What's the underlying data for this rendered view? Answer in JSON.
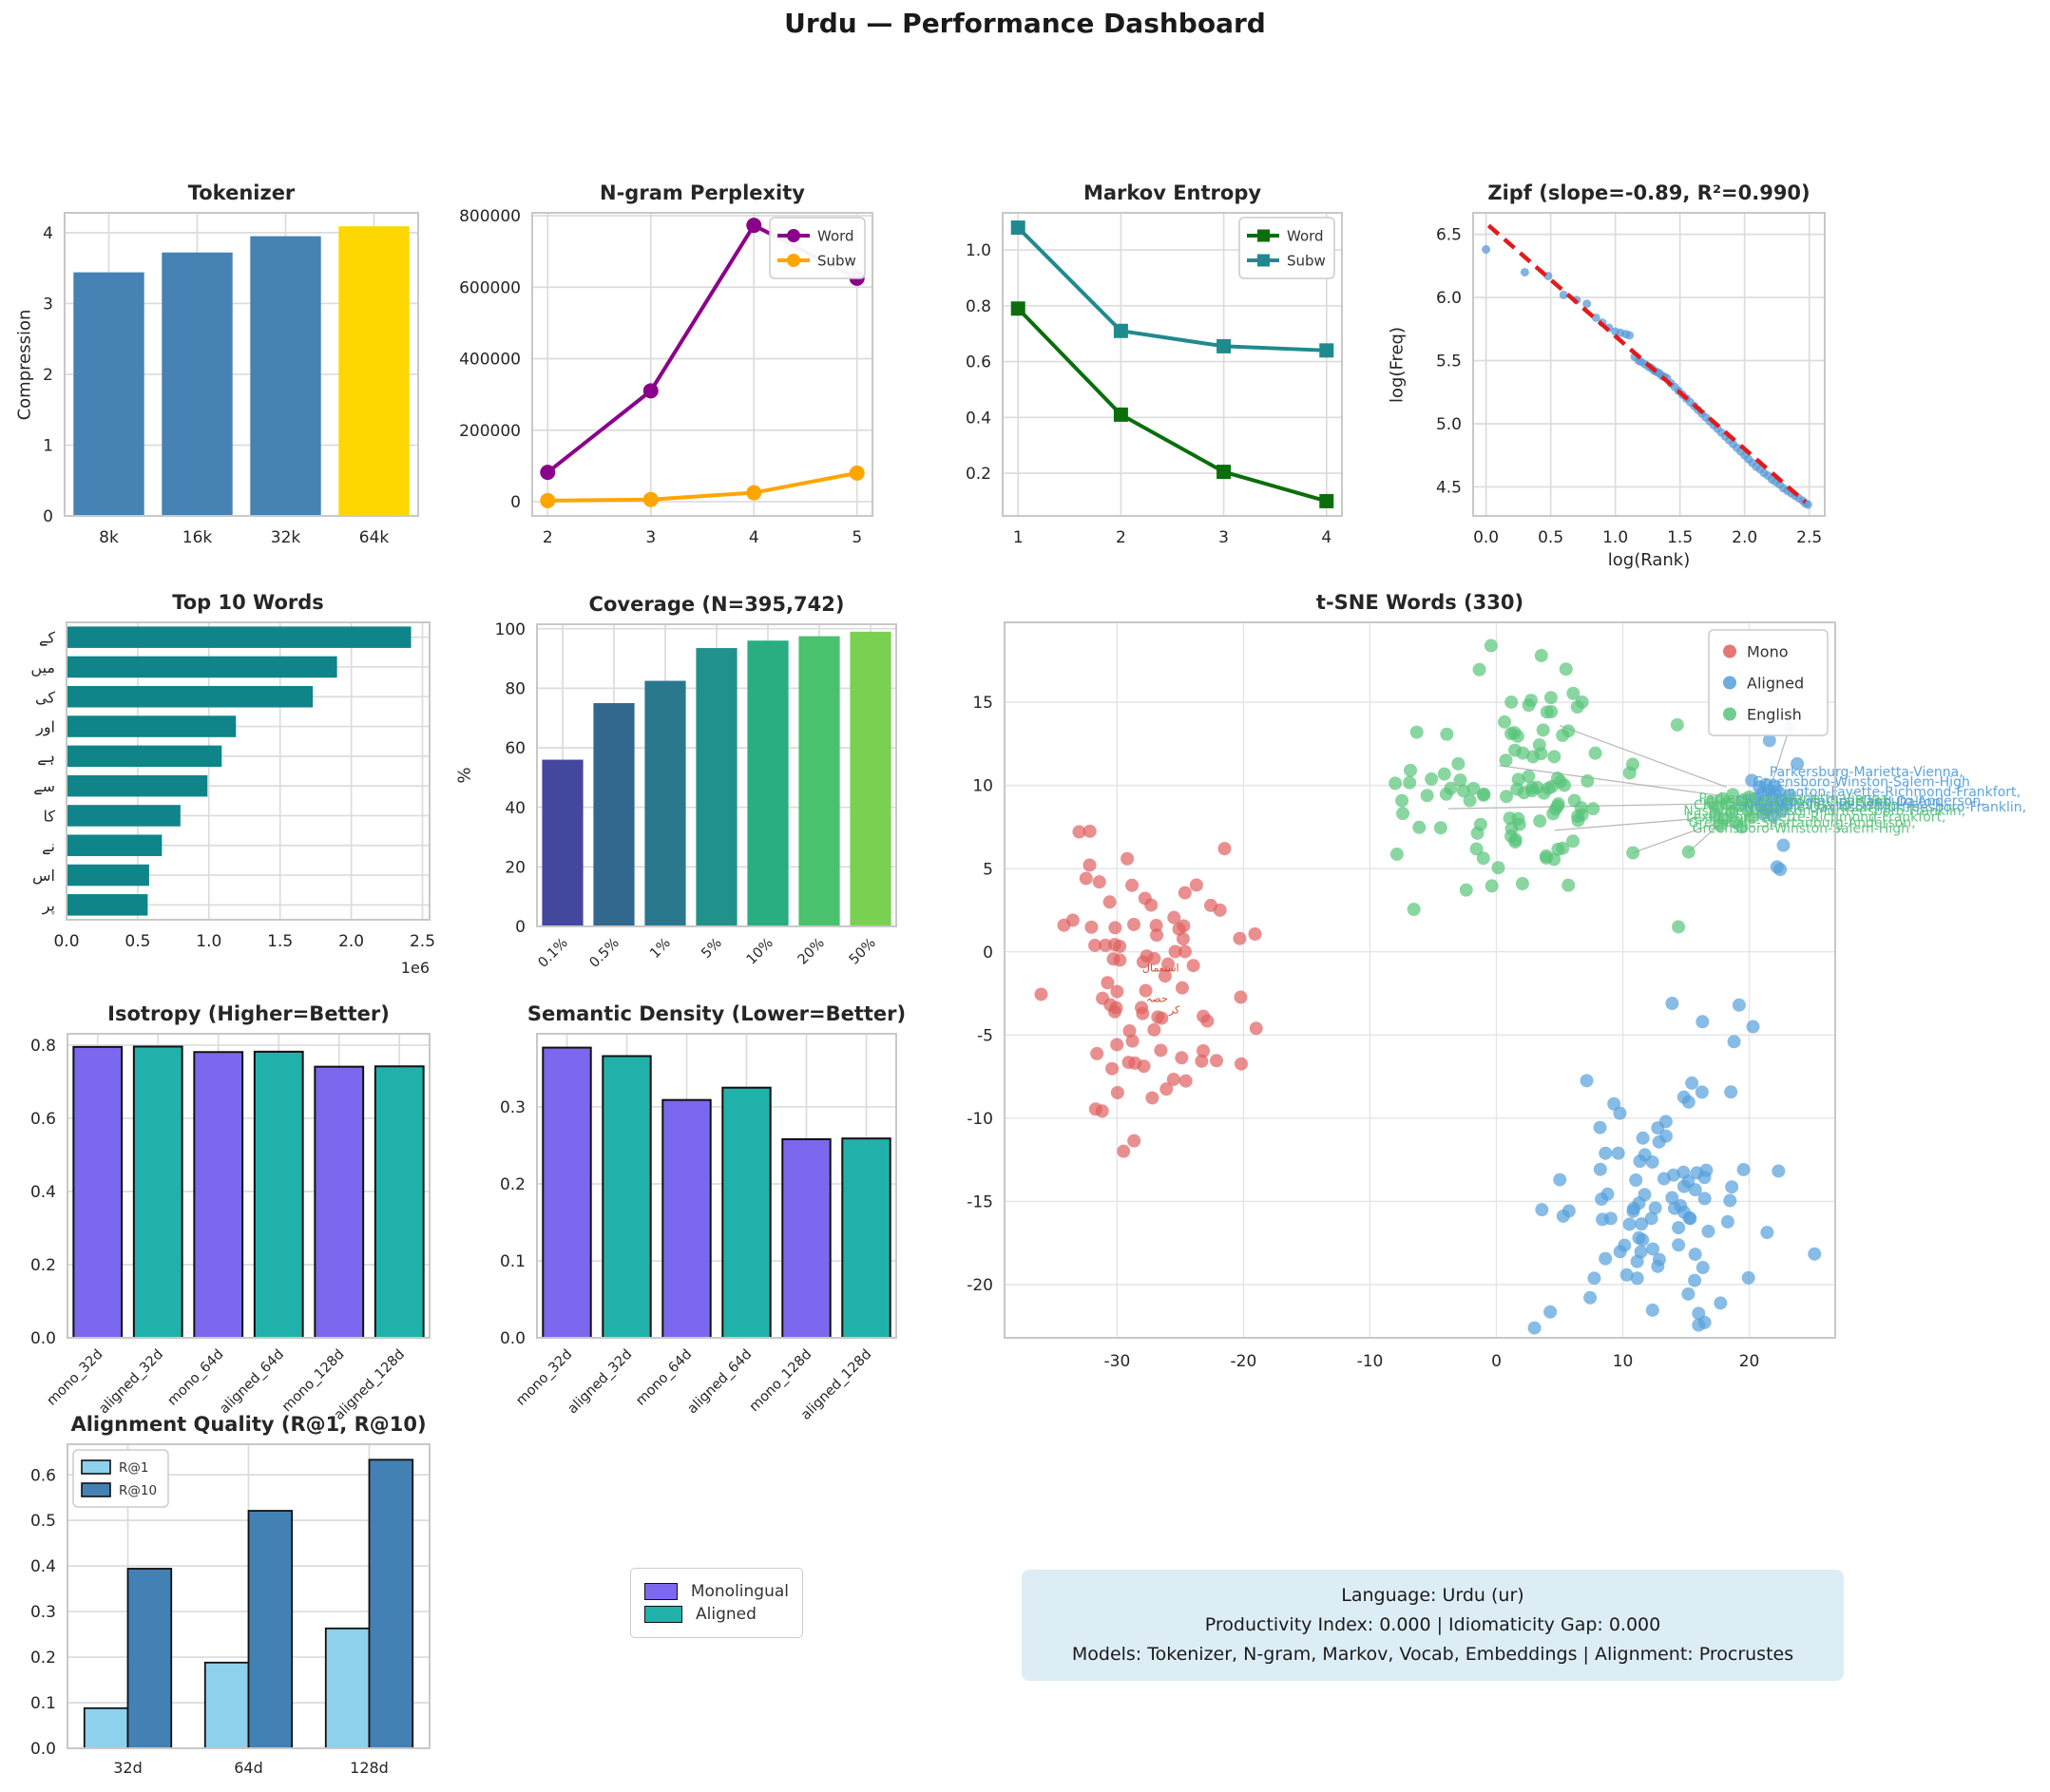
{
  "title": "Urdu — Performance Dashboard",
  "chart_data": {
    "tokenizer": {
      "type": "bar",
      "title": "Tokenizer",
      "ylabel": "Compression",
      "categories": [
        "8k",
        "16k",
        "32k",
        "64k"
      ],
      "values": [
        3.44,
        3.72,
        3.95,
        4.09
      ],
      "colors": [
        "#4682b4",
        "#4682b4",
        "#4682b4",
        "#ffd700"
      ],
      "yticks": [
        0,
        1,
        2,
        3,
        4
      ],
      "ytick_labels": [
        "0",
        "1",
        "2",
        "3",
        "4"
      ],
      "ylim": [
        0,
        4.28
      ],
      "grid": true
    },
    "ngram": {
      "type": "line",
      "title": "N-gram Perplexity",
      "x": [
        2,
        3,
        4,
        5
      ],
      "xtick_labels": [
        "2",
        "3",
        "4",
        "5"
      ],
      "xlim": [
        1.85,
        5.15
      ],
      "yticks": [
        0,
        200000,
        400000,
        600000,
        800000
      ],
      "ytick_labels": [
        "0",
        "200000",
        "400000",
        "600000",
        "800000"
      ],
      "ylim": [
        -40000,
        808000
      ],
      "legend_position": "upper right",
      "series": [
        {
          "name": "Word",
          "color": "#8b008b",
          "marker": "circle",
          "values": [
            82000,
            310000,
            773000,
            625000
          ]
        },
        {
          "name": "Subw",
          "color": "#ffa500",
          "marker": "circle",
          "values": [
            3000,
            6000,
            25000,
            80000
          ]
        }
      ]
    },
    "markov": {
      "type": "line",
      "title": "Markov Entropy",
      "x": [
        1,
        2,
        3,
        4
      ],
      "xtick_labels": [
        "1",
        "2",
        "3",
        "4"
      ],
      "xlim": [
        0.85,
        4.15
      ],
      "yticks": [
        0.2,
        0.4,
        0.6,
        0.8,
        1.0
      ],
      "ytick_labels": [
        "0.2",
        "0.4",
        "0.6",
        "0.8",
        "1.0"
      ],
      "ylim": [
        0.047,
        1.133
      ],
      "legend_position": "upper right",
      "series": [
        {
          "name": "Word",
          "color": "#0b6e0b",
          "marker": "square",
          "values": [
            0.79,
            0.41,
            0.205,
            0.1
          ]
        },
        {
          "name": "Subw",
          "color": "#1f8a8e",
          "marker": "square",
          "values": [
            1.08,
            0.71,
            0.655,
            0.64
          ]
        }
      ]
    },
    "zipf": {
      "type": "scatter",
      "title": "Zipf (slope=-0.89, R²=0.990)",
      "xlabel": "log(Rank)",
      "ylabel": "log(Freq)",
      "xticks": [
        0,
        0.5,
        1.0,
        1.5,
        2.0,
        2.5
      ],
      "xtick_labels": [
        "0.0",
        "0.5",
        "1.0",
        "1.5",
        "2.0",
        "2.5"
      ],
      "yticks": [
        4.5,
        5.0,
        5.5,
        6.0,
        6.5
      ],
      "ytick_labels": [
        "4.5",
        "5.0",
        "5.5",
        "6.0",
        "6.5"
      ],
      "xlim": [
        -0.1,
        2.62
      ],
      "ylim": [
        4.27,
        6.67
      ],
      "point_color": "#5b9bd5",
      "trend": {
        "x1": 0.02,
        "y1": 6.57,
        "x2": 2.47,
        "y2": 4.38,
        "color": "#e31a1c",
        "style": "dashed"
      },
      "points": [
        [
          0.0,
          6.38
        ],
        [
          0.3,
          6.2
        ],
        [
          0.48,
          6.17
        ],
        [
          0.6,
          6.02
        ],
        [
          0.7,
          5.98
        ],
        [
          0.78,
          5.95
        ],
        [
          0.85,
          5.84
        ],
        [
          0.9,
          5.8
        ],
        [
          0.95,
          5.76
        ],
        [
          1.0,
          5.73
        ],
        [
          1.04,
          5.72
        ],
        [
          1.08,
          5.71
        ],
        [
          1.11,
          5.7
        ],
        [
          1.15,
          5.53
        ],
        [
          1.18,
          5.5
        ],
        [
          1.2,
          5.49
        ],
        [
          1.23,
          5.47
        ],
        [
          1.26,
          5.45
        ],
        [
          1.28,
          5.44
        ],
        [
          1.3,
          5.42
        ],
        [
          1.32,
          5.41
        ],
        [
          1.34,
          5.4
        ],
        [
          1.36,
          5.38
        ],
        [
          1.38,
          5.37
        ],
        [
          1.4,
          5.36
        ],
        [
          1.43,
          5.32
        ],
        [
          1.46,
          5.29
        ],
        [
          1.49,
          5.26
        ],
        [
          1.52,
          5.23
        ],
        [
          1.55,
          5.2
        ],
        [
          1.58,
          5.17
        ],
        [
          1.61,
          5.14
        ],
        [
          1.64,
          5.11
        ],
        [
          1.67,
          5.08
        ],
        [
          1.7,
          5.05
        ],
        [
          1.73,
          5.02
        ],
        [
          1.76,
          4.99
        ],
        [
          1.79,
          4.96
        ],
        [
          1.82,
          4.93
        ],
        [
          1.85,
          4.9
        ],
        [
          1.88,
          4.87
        ],
        [
          1.91,
          4.84
        ],
        [
          1.94,
          4.81
        ],
        [
          1.97,
          4.78
        ],
        [
          2.0,
          4.75
        ],
        [
          2.03,
          4.72
        ],
        [
          2.06,
          4.69
        ],
        [
          2.09,
          4.66
        ],
        [
          2.12,
          4.64
        ],
        [
          2.15,
          4.61
        ],
        [
          2.18,
          4.59
        ],
        [
          2.21,
          4.56
        ],
        [
          2.24,
          4.54
        ],
        [
          2.27,
          4.52
        ],
        [
          2.3,
          4.49
        ],
        [
          2.33,
          4.47
        ],
        [
          2.36,
          4.45
        ],
        [
          2.39,
          4.43
        ],
        [
          2.42,
          4.41
        ],
        [
          2.45,
          4.39
        ],
        [
          2.47,
          4.37
        ],
        [
          2.49,
          4.36
        ]
      ]
    },
    "topwords": {
      "type": "hbar",
      "title": "Top 10 Words",
      "labels": [
        "کے",
        "میں",
        "کی",
        "اور",
        "ہے",
        "سے",
        "کا",
        "نے",
        "اس",
        "پر"
      ],
      "values": [
        2.42,
        1.9,
        1.73,
        1.19,
        1.09,
        0.99,
        0.8,
        0.67,
        0.58,
        0.57
      ],
      "color": "#0f8589",
      "xticks": [
        0,
        0.5,
        1.0,
        1.5,
        2.0,
        2.5
      ],
      "xtick_labels": [
        "0.0",
        "0.5",
        "1.0",
        "1.5",
        "2.0",
        "2.5"
      ],
      "xlim": [
        0,
        2.55
      ],
      "offset_label": "1e6"
    },
    "coverage": {
      "type": "bar",
      "title": "Coverage (N=395,742)",
      "ylabel": "%",
      "categories": [
        "0.1%",
        "0.5%",
        "1%",
        "5%",
        "10%",
        "20%",
        "50%"
      ],
      "values": [
        56,
        75,
        82.5,
        93.5,
        96,
        97.5,
        99
      ],
      "colors": [
        "#44479e",
        "#32688e",
        "#2a788e",
        "#21918c",
        "#28ae80",
        "#4ac16d",
        "#7ad151"
      ],
      "yticks": [
        0,
        20,
        40,
        60,
        80,
        100
      ],
      "ytick_labels": [
        "0",
        "20",
        "40",
        "60",
        "80",
        "100"
      ],
      "ylim": [
        0,
        101.5
      ],
      "rotate_xticks": 45
    },
    "tsne": {
      "type": "scatter",
      "title": "t-SNE Words (330)",
      "xticks": [
        -30,
        -20,
        -10,
        0,
        10,
        20
      ],
      "xtick_labels": [
        "-30",
        "-20",
        "-10",
        "0",
        "10",
        "20"
      ],
      "yticks": [
        -20,
        -15,
        -10,
        -5,
        0,
        5,
        10,
        15
      ],
      "ytick_labels": [
        "-20",
        "-15",
        "-10",
        "-5",
        "0",
        "5",
        "10",
        "15"
      ],
      "xlim": [
        -38.9,
        26.8
      ],
      "ylim": [
        -23.2,
        19.8
      ],
      "legend": [
        "Mono",
        "Aligned",
        "English"
      ],
      "clusters": [
        {
          "name": "Mono",
          "color": "#e05f5f",
          "n": 78,
          "cx": -27.5,
          "cy": -2.5,
          "sx": 3.6,
          "sy": 4.3,
          "xmin": -36.5,
          "xmax": -18.5,
          "ymin": -12.6,
          "ymax": 7.3,
          "seed": 11
        },
        {
          "name": "Aligned",
          "color": "#549fdb",
          "n": 88,
          "cx": 12,
          "cy": -14.5,
          "sx": 4.2,
          "sy": 3.9,
          "xmin": 2,
          "xmax": 25.5,
          "ymin": -22.8,
          "ymax": -6.8,
          "seed": 22
        },
        {
          "name": "English",
          "color": "#57c479",
          "n": 100,
          "cx": 1.5,
          "cy": 10,
          "sx": 4.6,
          "sy": 3.2,
          "xmin": -8,
          "xmax": 16,
          "ymin": 1.8,
          "ymax": 18.5,
          "seed": 33
        }
      ],
      "extra_points": {
        "Mono": [
          [
            -21.5,
            6.2
          ],
          [
            -20.3,
            0.8
          ],
          [
            -19.0,
            -4.6
          ],
          [
            -33.5,
            1.9
          ],
          [
            -34.2,
            1.6
          ]
        ],
        "Aligned": [
          [
            20.2,
            10.3
          ],
          [
            20.8,
            9.9
          ],
          [
            21.3,
            10.05
          ],
          [
            21.0,
            9.5
          ],
          [
            20.5,
            9.2
          ],
          [
            21.6,
            9.7
          ],
          [
            22.0,
            9.95
          ],
          [
            21.8,
            9.3
          ],
          [
            22.3,
            9.6
          ],
          [
            20.9,
            8.8
          ],
          [
            21.4,
            8.55
          ],
          [
            22.0,
            8.7
          ],
          [
            22.5,
            9.1
          ],
          [
            21.1,
            8.3
          ],
          [
            21.9,
            8.15
          ],
          [
            22.6,
            8.5
          ],
          [
            23.2,
            9.4
          ],
          [
            23.0,
            8.9
          ],
          [
            22.7,
            6.4
          ],
          [
            22.2,
            5.1
          ],
          [
            22.45,
            4.95
          ],
          [
            23.2,
            13.5
          ],
          [
            21.6,
            12.7
          ],
          [
            23.8,
            11.3
          ],
          [
            19.2,
            -3.2
          ],
          [
            20.3,
            -4.5
          ],
          [
            18.8,
            -5.4
          ],
          [
            13.9,
            -3.1
          ],
          [
            16.3,
            -4.2
          ],
          [
            3.6,
            -15.5
          ]
        ],
        "English": [
          [
            17.0,
            9.0
          ],
          [
            17.5,
            8.7
          ],
          [
            17.9,
            9.2
          ],
          [
            18.3,
            8.9
          ],
          [
            18.7,
            9.45
          ],
          [
            17.3,
            8.2
          ],
          [
            18.0,
            8.0
          ],
          [
            18.6,
            8.4
          ],
          [
            19.2,
            8.8
          ],
          [
            19.6,
            9.15
          ],
          [
            19.9,
            8.5
          ],
          [
            18.9,
            7.8
          ],
          [
            19.4,
            7.5
          ],
          [
            20.2,
            8.1
          ],
          [
            17.7,
            7.6
          ],
          [
            20.0,
            9.3
          ],
          [
            15.2,
            6.0
          ],
          [
            10.8,
            5.95
          ],
          [
            14.4,
            1.5
          ],
          [
            -6.3,
            13.2
          ],
          [
            -6.8,
            10.9
          ]
        ]
      },
      "connectors": [
        [
          5.0,
          13.6,
          18.2,
          9.9
        ],
        [
          0.2,
          11.2,
          17.6,
          9.4
        ],
        [
          -3.8,
          8.6,
          17.2,
          8.9
        ],
        [
          4.6,
          7.3,
          17.4,
          8.1
        ],
        [
          10.8,
          5.95,
          17.2,
          7.7
        ],
        [
          15.2,
          6.0,
          18.0,
          7.9
        ],
        [
          23.2,
          13.5,
          21.9,
          10.4
        ]
      ],
      "annotations": [
        {
          "text": "Parkersburg-Marietta-Vienna,",
          "x": 21.6,
          "y": 10.55,
          "color": "#549fdb",
          "size": 14
        },
        {
          "text": "Greensboro-Winston-Salem-High",
          "x": 20.3,
          "y": 9.95,
          "color": "#549fdb",
          "size": 14
        },
        {
          "text": "Lexington-Fayette-Richmond-Frankfort,",
          "x": 20.9,
          "y": 9.35,
          "color": "#549fdb",
          "size": 14
        },
        {
          "text": "Greenville-Spartanburg-Anderson,",
          "x": 20.7,
          "y": 8.8,
          "color": "#549fdb",
          "size": 14
        },
        {
          "text": "Nashville-Davidson-Murfreesboro-Franklin,",
          "x": 19.6,
          "y": 8.45,
          "color": "#549fdb",
          "size": 14
        },
        {
          "text": "Chattanooga-Cleveland-Dalton,",
          "x": 18.9,
          "y": 8.75,
          "color": "#549fdb",
          "size": 14
        },
        {
          "text": "Parkersburg-Marietta-Vienna,",
          "x": 16.0,
          "y": 8.95,
          "color": "#57c479",
          "size": 14
        },
        {
          "text": "Chattanooga-Cleveland-Dalton,",
          "x": 15.6,
          "y": 8.55,
          "color": "#57c479",
          "size": 14
        },
        {
          "text": "Nashville-Davidson-Murfreesboro-Franklin,",
          "x": 14.8,
          "y": 8.2,
          "color": "#57c479",
          "size": 14
        },
        {
          "text": "Lexington-Fayette-Richmond-Frankfort,",
          "x": 15.0,
          "y": 7.85,
          "color": "#57c479",
          "size": 14
        },
        {
          "text": "Greenville-Spartanburg-Anderson,",
          "x": 15.2,
          "y": 7.5,
          "color": "#57c479",
          "size": 14
        },
        {
          "text": "Greensboro-Winston-Salem-High",
          "x": 15.5,
          "y": 7.15,
          "color": "#57c479",
          "size": 14
        },
        {
          "text": "استعمال",
          "x": -28.0,
          "y": -1.2,
          "color": "#cc4125",
          "size": 11
        },
        {
          "text": "حصہ",
          "x": -27.7,
          "y": -3.0,
          "color": "#cc4125",
          "size": 11
        },
        {
          "text": "کر",
          "x": -25.9,
          "y": -3.7,
          "color": "#cc4125",
          "size": 11
        }
      ]
    },
    "isotropy": {
      "type": "bar",
      "title": "Isotropy (Higher=Better)",
      "categories": [
        "mono_32d",
        "aligned_32d",
        "mono_64d",
        "aligned_64d",
        "mono_128d",
        "aligned_128d"
      ],
      "values": [
        0.795,
        0.796,
        0.781,
        0.782,
        0.741,
        0.742
      ],
      "colors": [
        "#7b68ee",
        "#20b2aa",
        "#7b68ee",
        "#20b2aa",
        "#7b68ee",
        "#20b2aa"
      ],
      "edge": true,
      "yticks": [
        0.0,
        0.2,
        0.4,
        0.6,
        0.8
      ],
      "ytick_labels": [
        "0.0",
        "0.2",
        "0.4",
        "0.6",
        "0.8"
      ],
      "ylim": [
        0,
        0.831
      ],
      "rotate_xticks": 45
    },
    "density": {
      "type": "bar",
      "title": "Semantic Density (Lower=Better)",
      "categories": [
        "mono_32d",
        "aligned_32d",
        "mono_64d",
        "aligned_64d",
        "mono_128d",
        "aligned_128d"
      ],
      "values": [
        0.377,
        0.366,
        0.309,
        0.325,
        0.258,
        0.259
      ],
      "colors": [
        "#7b68ee",
        "#20b2aa",
        "#7b68ee",
        "#20b2aa",
        "#7b68ee",
        "#20b2aa"
      ],
      "edge": true,
      "yticks": [
        0.0,
        0.1,
        0.2,
        0.3
      ],
      "ytick_labels": [
        "0.0",
        "0.1",
        "0.2",
        "0.3"
      ],
      "ylim": [
        0,
        0.395
      ],
      "rotate_xticks": 45
    },
    "alignment": {
      "type": "groupbar",
      "title": "Alignment Quality (R@1, R@10)",
      "categories": [
        "32d",
        "64d",
        "128d"
      ],
      "series": [
        {
          "name": "R@1",
          "color": "#8ed1ec",
          "values": [
            0.088,
            0.188,
            0.263
          ]
        },
        {
          "name": "R@10",
          "color": "#4381b5",
          "values": [
            0.394,
            0.521,
            0.633
          ]
        }
      ],
      "edge": true,
      "yticks": [
        0.0,
        0.1,
        0.2,
        0.3,
        0.4,
        0.5,
        0.6
      ],
      "ytick_labels": [
        "0.0",
        "0.1",
        "0.2",
        "0.3",
        "0.4",
        "0.5",
        "0.6"
      ],
      "ylim": [
        0,
        0.667
      ],
      "legend_position": "upper left"
    }
  },
  "legend_box": {
    "items": [
      {
        "label": "Monolingual",
        "color": "#7b68ee"
      },
      {
        "label": "Aligned",
        "color": "#20b2aa"
      }
    ]
  },
  "info_box": {
    "bg": "#ddedf5",
    "lines": [
      "Language: Urdu (ur)",
      "Productivity Index: 0.000  |  Idiomaticity Gap: 0.000",
      "Models: Tokenizer, N-gram, Markov, Vocab, Embeddings  |  Alignment: Procrustes"
    ]
  }
}
